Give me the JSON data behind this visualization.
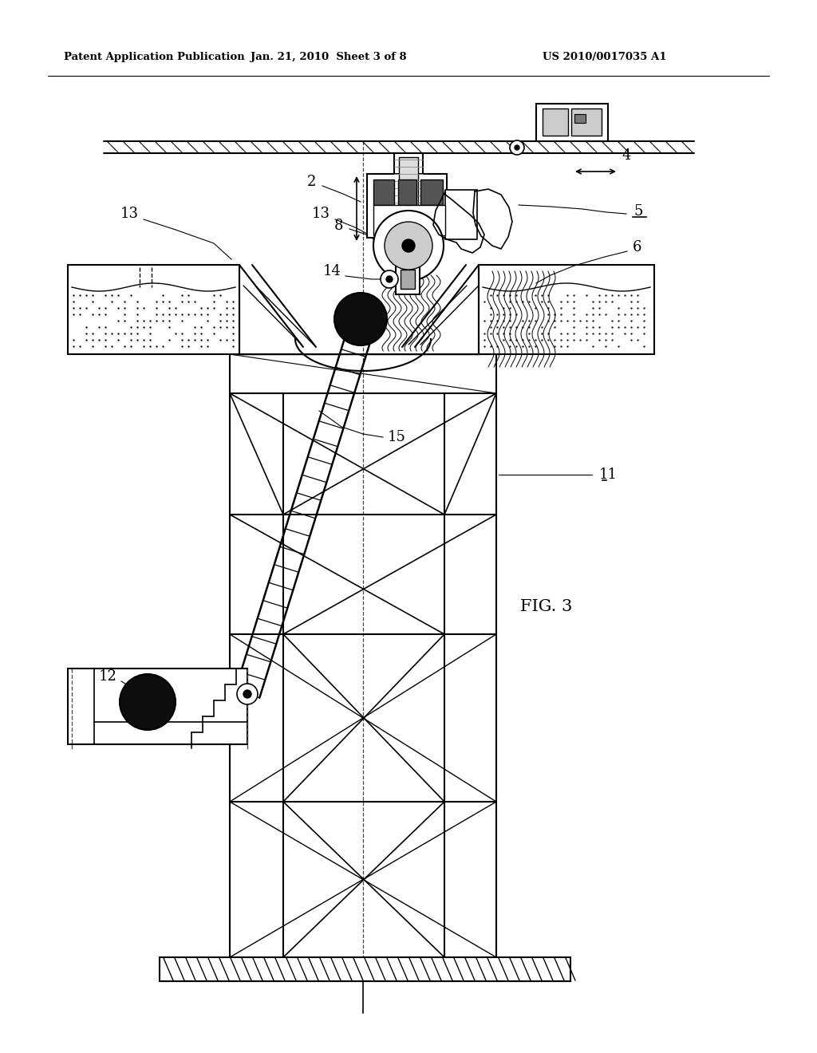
{
  "bg_color": "#ffffff",
  "header_left": "Patent Application Publication",
  "header_center": "Jan. 21, 2010  Sheet 3 of 8",
  "header_right": "US 2010/0017035 A1",
  "fig_label": "FIG. 3"
}
